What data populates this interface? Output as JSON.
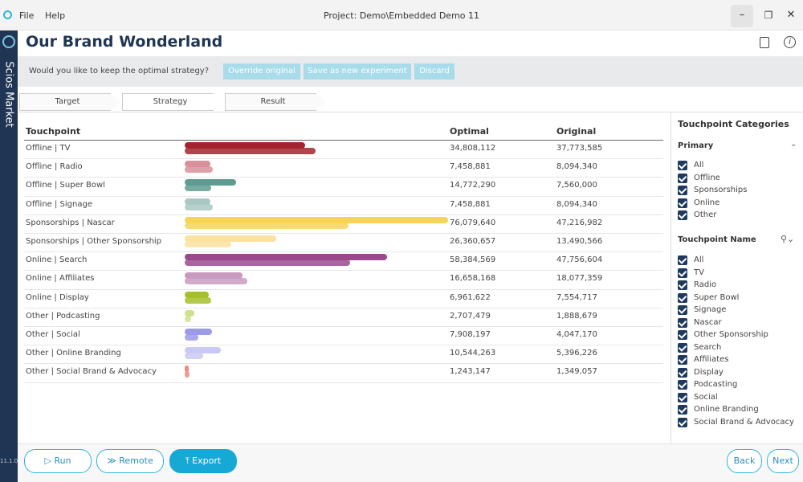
{
  "window": {
    "menu": [
      "File",
      "Help"
    ],
    "project": "Project: Demo\\Embedded Demo 11"
  },
  "sidebar": {
    "app": "Scios Market",
    "version": "11.1.0-S"
  },
  "header": {
    "title": "Our Brand Wonderland"
  },
  "prompt": {
    "question": "Would you like to keep the optimal strategy?",
    "buttons": [
      "Override original",
      "Save as new experiment",
      "Discard"
    ]
  },
  "tabs": [
    "Target",
    "Strategy",
    "Result"
  ],
  "table": {
    "columns": [
      "Touchpoint",
      "Optimal",
      "Original"
    ],
    "rows": [
      {
        "touchpoint": "Offline | TV",
        "color": "#a3242f",
        "optimal": {
          "value": 34808112,
          "label": "34,808,112"
        },
        "original": {
          "value": 37773585,
          "label": "37,773,585"
        }
      },
      {
        "touchpoint": "Offline | Radio",
        "color": "#d8909a",
        "optimal": {
          "value": 7458881,
          "label": "7,458,881"
        },
        "original": {
          "value": 8094340,
          "label": "8,094,340"
        }
      },
      {
        "touchpoint": "Offline | Super Bowl",
        "color": "#5f9b90",
        "optimal": {
          "value": 14772290,
          "label": "14,772,290"
        },
        "original": {
          "value": 7560000,
          "label": "7,560,000"
        }
      },
      {
        "touchpoint": "Offline | Signage",
        "color": "#a9c8c3",
        "optimal": {
          "value": 7458881,
          "label": "7,458,881"
        },
        "original": {
          "value": 8094340,
          "label": "8,094,340"
        }
      },
      {
        "touchpoint": "Sponsorships | Nascar",
        "color": "#f6d35a",
        "optimal": {
          "value": 76079640,
          "label": "76,079,640"
        },
        "original": {
          "value": 47216982,
          "label": "47,216,982"
        }
      },
      {
        "touchpoint": "Sponsorships | Other Sponsorship",
        "color": "#fbe2a0",
        "optimal": {
          "value": 26360657,
          "label": "26,360,657"
        },
        "original": {
          "value": 13490566,
          "label": "13,490,566"
        }
      },
      {
        "touchpoint": "Online | Search",
        "color": "#9a4a8c",
        "optimal": {
          "value": 58384569,
          "label": "58,384,569"
        },
        "original": {
          "value": 47756604,
          "label": "47,756,604"
        }
      },
      {
        "touchpoint": "Online | Affiliates",
        "color": "#c99ac0",
        "optimal": {
          "value": 16658168,
          "label": "16,658,168"
        },
        "original": {
          "value": 18077359,
          "label": "18,077,359"
        }
      },
      {
        "touchpoint": "Online | Display",
        "color": "#a5c02a",
        "optimal": {
          "value": 6961622,
          "label": "6,961,622"
        },
        "original": {
          "value": 7554717,
          "label": "7,554,717"
        }
      },
      {
        "touchpoint": "Other | Podcasting",
        "color": "#cfe08c",
        "optimal": {
          "value": 2707479,
          "label": "2,707,479"
        },
        "original": {
          "value": 1888679,
          "label": "1,888,679"
        }
      },
      {
        "touchpoint": "Other | Social",
        "color": "#9b9be8",
        "optimal": {
          "value": 7908197,
          "label": "7,908,197"
        },
        "original": {
          "value": 4047170,
          "label": "4,047,170"
        }
      },
      {
        "touchpoint": "Other | Online Branding",
        "color": "#c9c9f5",
        "optimal": {
          "value": 10544263,
          "label": "10,544,263"
        },
        "original": {
          "value": 5396226,
          "label": "5,396,226"
        }
      },
      {
        "touchpoint": "Other | Social Brand & Advocacy",
        "color": "#f08a80",
        "optimal": {
          "value": 1243147,
          "label": "1,243,147"
        },
        "original": {
          "value": 1349057,
          "label": "1,349,057"
        }
      }
    ]
  },
  "panel": {
    "title": "Touchpoint Categories",
    "primary": {
      "label": "Primary",
      "items": [
        "All",
        "Offline",
        "Sponsorships",
        "Online",
        "Other"
      ]
    },
    "names": {
      "label": "Touchpoint Name",
      "items": [
        "All",
        "TV",
        "Radio",
        "Super Bowl",
        "Signage",
        "Nascar",
        "Other Sponsorship",
        "Search",
        "Affiliates",
        "Display",
        "Podcasting",
        "Social",
        "Online Branding",
        "Social Brand & Advocacy"
      ]
    }
  },
  "footer": {
    "left": [
      "Run",
      "Remote",
      "Export"
    ],
    "right": [
      "Back",
      "Next"
    ]
  }
}
